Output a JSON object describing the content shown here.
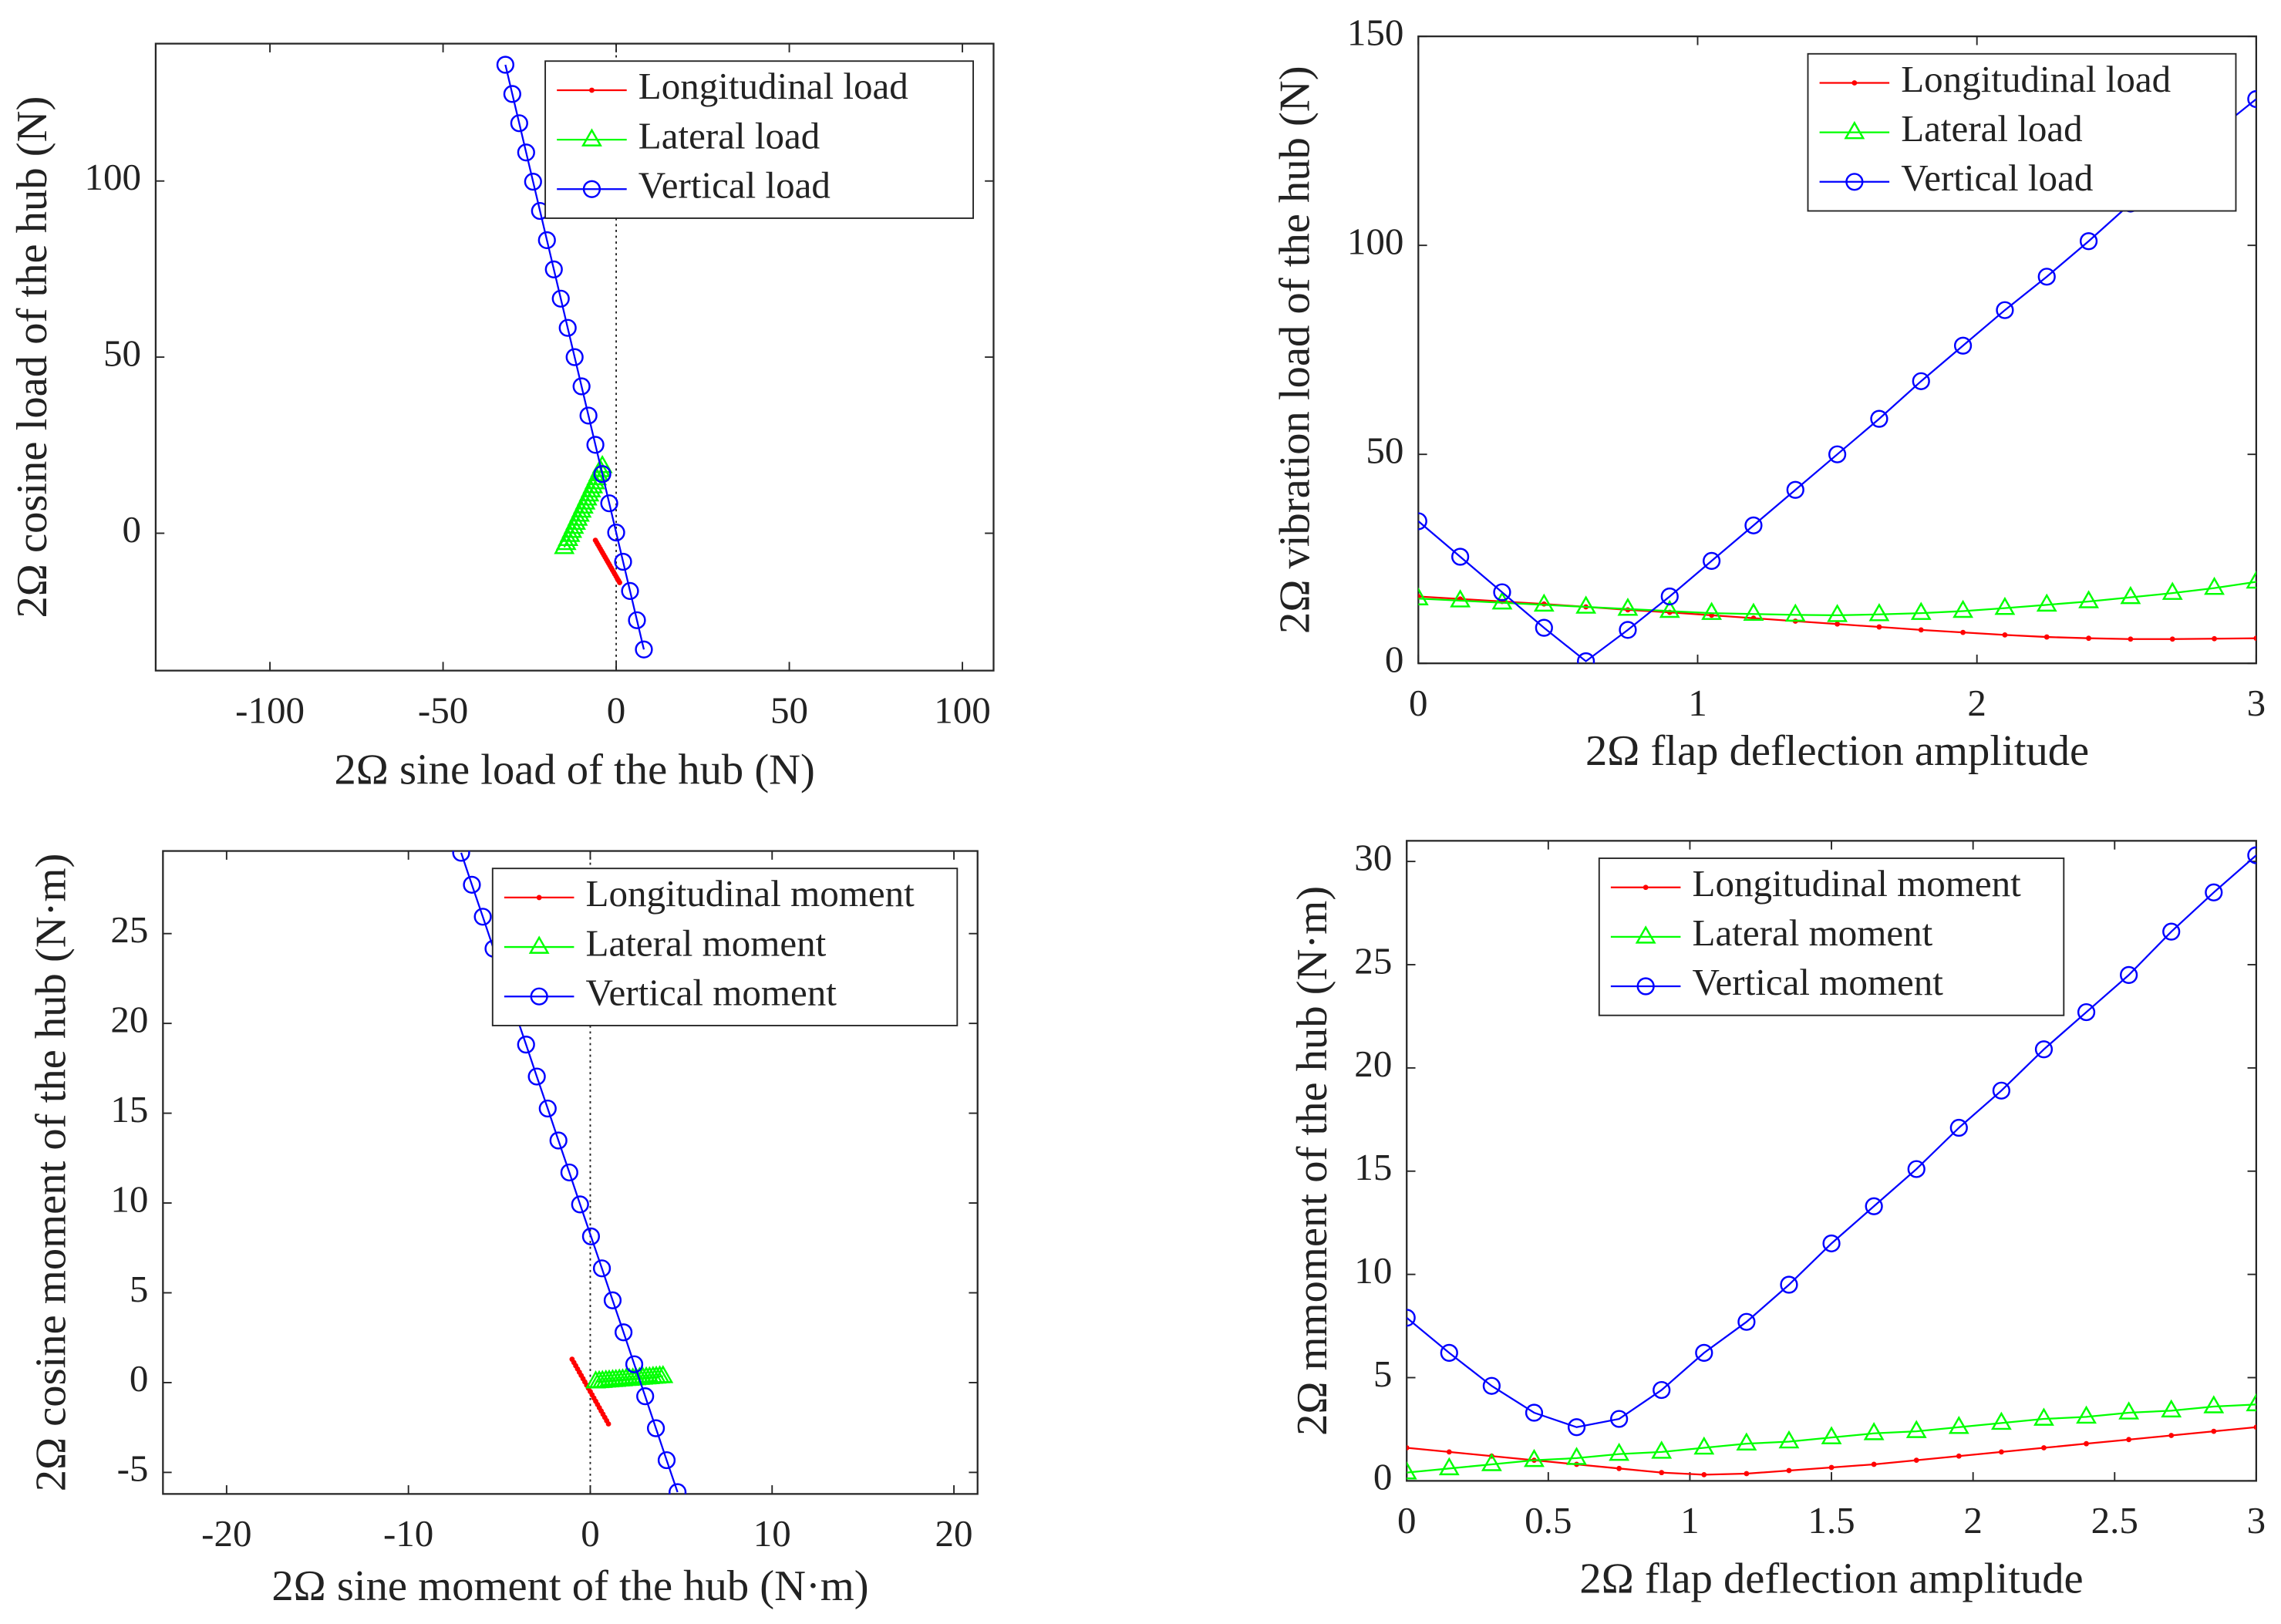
{
  "chart_data": [
    {
      "type": "line",
      "xlabel": "2Ω sine load of the hub (N)",
      "ylabel": "2Ω cosine load of the hub (N)",
      "xlim": [
        -133,
        109
      ],
      "ylim": [
        -39,
        139
      ],
      "xticks": [
        -100,
        -50,
        0,
        50,
        100
      ],
      "yticks": [
        0,
        50,
        100
      ],
      "zero_line": true,
      "legend": "upper right",
      "grid": false,
      "series": [
        {
          "name": "Longitudinal load",
          "color": "#ff0000",
          "marker": "dot",
          "x": [
            -6,
            -5.65,
            -5.3,
            -4.95,
            -4.6,
            -4.25,
            -3.9,
            -3.55,
            -3.2,
            -2.85,
            -2.5,
            -2.15,
            -1.8,
            -1.45,
            -1.1,
            -0.75,
            -0.4,
            -0.05,
            0.3,
            0.65,
            1
          ],
          "values": [
            -2,
            -2.6,
            -3.2,
            -3.8,
            -4.4,
            -5,
            -5.6,
            -6.2,
            -6.8,
            -7.4,
            -8,
            -8.6,
            -9.2,
            -9.8,
            -10.4,
            -11,
            -11.6,
            -12.2,
            -12.8,
            -13.4,
            -14
          ]
        },
        {
          "name": "Lateral load",
          "color": "#00ff00",
          "marker": "triangle",
          "x": [
            -15,
            -14.45,
            -13.9,
            -13.35,
            -12.8,
            -12.25,
            -11.7,
            -11.15,
            -10.6,
            -10.05,
            -9.5,
            -8.95,
            -8.4,
            -7.85,
            -7.3,
            -6.75,
            -6.2,
            -5.65,
            -5.1,
            -4.55,
            -4
          ],
          "values": [
            -4,
            -2.85,
            -1.7,
            -0.55,
            0.6,
            1.75,
            2.9,
            4.05,
            5.2,
            6.35,
            7.5,
            8.65,
            9.8,
            10.95,
            12.1,
            13.25,
            14.4,
            15.55,
            16.7,
            17.85,
            19
          ]
        },
        {
          "name": "Vertical load",
          "color": "#0000ff",
          "marker": "circle",
          "x": [
            8,
            6,
            4,
            2,
            0,
            -2,
            -4,
            -6,
            -8,
            -10,
            -12,
            -14,
            -16,
            -18,
            -20,
            -22,
            -24,
            -26,
            -28,
            -30,
            -32
          ],
          "values": [
            -33,
            -24.7,
            -16.4,
            -8.1,
            0.2,
            8.5,
            16.8,
            25.1,
            33.4,
            41.7,
            50,
            58.3,
            66.6,
            74.9,
            83.2,
            91.5,
            99.8,
            108.1,
            116.4,
            124.7,
            133
          ]
        }
      ]
    },
    {
      "type": "line",
      "xlabel": "2Ω flap deflection amplitude",
      "ylabel": "2Ω vibration load of the hub (N)",
      "xlim": [
        0,
        3
      ],
      "ylim": [
        0,
        150
      ],
      "xticks": [
        0,
        1,
        2,
        3
      ],
      "yticks": [
        0,
        50,
        100,
        150
      ],
      "legend": "upper right",
      "grid": false,
      "x": [
        0,
        0.15,
        0.3,
        0.45,
        0.6,
        0.75,
        0.9,
        1.05,
        1.2,
        1.35,
        1.5,
        1.65,
        1.8,
        1.95,
        2.1,
        2.25,
        2.4,
        2.55,
        2.7,
        2.85,
        3
      ],
      "series": [
        {
          "name": "Longitudinal load",
          "color": "#ff0000",
          "marker": "dot",
          "values": [
            16,
            15.4,
            14.8,
            14.2,
            13.5,
            12.8,
            12.2,
            11.5,
            10.8,
            10.1,
            9.4,
            8.7,
            8,
            7.4,
            6.8,
            6.3,
            6,
            5.8,
            5.8,
            5.9,
            6
          ]
        },
        {
          "name": "Lateral load",
          "color": "#00ff00",
          "marker": "triangle",
          "values": [
            15.5,
            15,
            14.5,
            14,
            13.5,
            13,
            12.5,
            12,
            11.8,
            11.6,
            11.5,
            11.7,
            12,
            12.5,
            13.2,
            14,
            14.8,
            15.8,
            16.8,
            18,
            19.5
          ]
        },
        {
          "name": "Vertical load",
          "color": "#0000ff",
          "marker": "circle",
          "values": [
            34,
            25.5,
            17,
            8.5,
            0.5,
            8,
            16,
            24.5,
            33,
            41.5,
            50,
            58.5,
            67.5,
            76,
            84.5,
            92.5,
            101,
            110,
            118.5,
            127,
            135
          ]
        }
      ]
    },
    {
      "type": "line",
      "xlabel": "2Ω sine moment of the hub (N·m)",
      "ylabel": "2Ω cosine moment of the hub (N·m)",
      "xlim": [
        -23.5,
        21.3
      ],
      "ylim": [
        -6.2,
        29.6
      ],
      "xticks": [
        -20,
        -10,
        0,
        10,
        20
      ],
      "yticks": [
        -5,
        0,
        5,
        10,
        15,
        20,
        25
      ],
      "zero_line": true,
      "legend": "upper right",
      "grid": false,
      "series": [
        {
          "name": "Longitudinal moment",
          "color": "#ff0000",
          "marker": "dot",
          "x": [
            -1,
            -0.9,
            -0.8,
            -0.7,
            -0.6,
            -0.5,
            -0.4,
            -0.3,
            -0.2,
            -0.1,
            0,
            0.1,
            0.2,
            0.3,
            0.4,
            0.5,
            0.6,
            0.7,
            0.8,
            0.9,
            1
          ],
          "values": [
            1.3,
            1.12,
            0.94,
            0.76,
            0.58,
            0.4,
            0.22,
            0.04,
            -0.14,
            -0.32,
            -0.5,
            -0.68,
            -0.86,
            -1.04,
            -1.22,
            -1.4,
            -1.58,
            -1.76,
            -1.94,
            -2.12,
            -2.3
          ]
        },
        {
          "name": "Lateral moment",
          "color": "#00ff00",
          "marker": "triangle",
          "x": [
            0.3,
            0.49,
            0.67,
            0.86,
            1.04,
            1.23,
            1.41,
            1.6,
            1.78,
            1.97,
            2.15,
            2.34,
            2.52,
            2.71,
            2.89,
            3.08,
            3.26,
            3.45,
            3.63,
            3.82,
            4
          ],
          "values": [
            0.05,
            0.07,
            0.08,
            0.1,
            0.11,
            0.13,
            0.14,
            0.16,
            0.17,
            0.19,
            0.2,
            0.22,
            0.23,
            0.25,
            0.26,
            0.28,
            0.29,
            0.31,
            0.32,
            0.34,
            0.35
          ]
        },
        {
          "name": "Vertical moment",
          "color": "#0000ff",
          "marker": "circle",
          "x": [
            4.8,
            4.2,
            3.61,
            3.02,
            2.42,
            1.83,
            1.23,
            0.64,
            0.04,
            -0.56,
            -1.15,
            -1.75,
            -2.34,
            -2.94,
            -3.53,
            -4.13,
            -4.72,
            -5.32,
            -5.91,
            -6.51,
            -7.1
          ],
          "values": [
            -6.1,
            -4.32,
            -2.54,
            -0.76,
            1.02,
            2.8,
            4.58,
            6.36,
            8.14,
            9.92,
            11.7,
            13.48,
            15.26,
            17.04,
            18.82,
            20.6,
            22.38,
            24.16,
            25.94,
            27.72,
            29.5
          ]
        }
      ]
    },
    {
      "type": "line",
      "xlabel": "2Ω flap deflection amplitude",
      "ylabel": "2Ω mmoment of the hub (N·m)",
      "xlim": [
        0,
        3
      ],
      "ylim": [
        0,
        31
      ],
      "xticks": [
        0,
        0.5,
        1,
        1.5,
        2,
        2.5,
        3
      ],
      "yticks": [
        0,
        5,
        10,
        15,
        20,
        25,
        30
      ],
      "legend": "upper center",
      "grid": false,
      "x": [
        0,
        0.15,
        0.3,
        0.45,
        0.6,
        0.75,
        0.9,
        1.05,
        1.2,
        1.35,
        1.5,
        1.65,
        1.8,
        1.95,
        2.1,
        2.25,
        2.4,
        2.55,
        2.7,
        2.85,
        3
      ],
      "series": [
        {
          "name": "Longitudinal moment",
          "color": "#ff0000",
          "marker": "dot",
          "values": [
            1.6,
            1.4,
            1.2,
            1,
            0.8,
            0.6,
            0.4,
            0.3,
            0.35,
            0.5,
            0.65,
            0.8,
            1,
            1.2,
            1.4,
            1.6,
            1.8,
            2,
            2.2,
            2.4,
            2.6
          ]
        },
        {
          "name": "Lateral moment",
          "color": "#00ff00",
          "marker": "triangle",
          "values": [
            0.4,
            0.6,
            0.8,
            1,
            1.1,
            1.3,
            1.4,
            1.6,
            1.8,
            1.9,
            2.1,
            2.3,
            2.4,
            2.6,
            2.8,
            3,
            3.1,
            3.3,
            3.4,
            3.6,
            3.7
          ]
        },
        {
          "name": "Vertical moment",
          "color": "#0000ff",
          "marker": "circle",
          "values": [
            7.9,
            6.2,
            4.6,
            3.3,
            2.6,
            3,
            4.4,
            6.2,
            7.7,
            9.5,
            11.5,
            13.3,
            15.1,
            17.1,
            18.9,
            20.9,
            22.7,
            24.5,
            26.6,
            28.5,
            30.3
          ]
        }
      ]
    }
  ]
}
